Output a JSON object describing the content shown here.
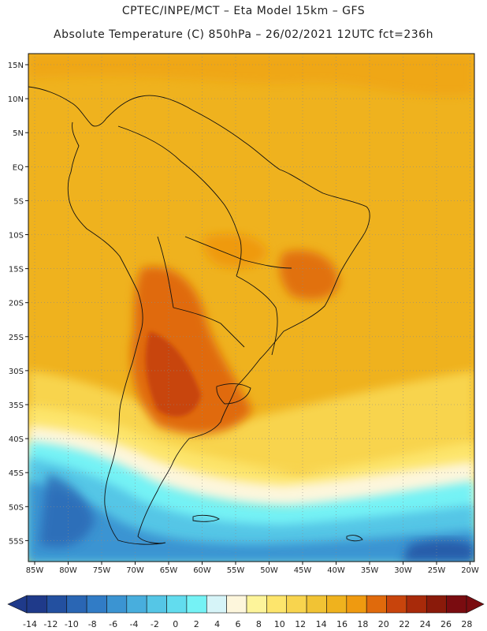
{
  "header": {
    "line1": "CPTEC/INPE/MCT –  Eta Model 15km – GFS",
    "line2": "Absolute Temperature (C) 850hPa – 26/02/2021 12UTC fct=236h"
  },
  "map": {
    "lat_labels": [
      "15N",
      "10N",
      "5N",
      "EQ",
      "5S",
      "10S",
      "15S",
      "20S",
      "25S",
      "30S",
      "35S",
      "40S",
      "45S",
      "50S",
      "55S"
    ],
    "lon_labels": [
      "85W",
      "80W",
      "75W",
      "70W",
      "65W",
      "60W",
      "55W",
      "50W",
      "45W",
      "40W",
      "35W",
      "30W",
      "25W",
      "20W"
    ]
  },
  "colorbar": {
    "labels": [
      "-14",
      "-12",
      "-10",
      "-8",
      "-6",
      "-4",
      "-2",
      "0",
      "2",
      "4",
      "6",
      "8",
      "10",
      "12",
      "14",
      "16",
      "18",
      "20",
      "22",
      "24",
      "26",
      "28"
    ],
    "colors": [
      "#1f3a8a",
      "#2350a0",
      "#2a66b4",
      "#317cc6",
      "#3b94d2",
      "#48aedd",
      "#55c6e6",
      "#62dcee",
      "#75f2f5",
      "#d6f4f8",
      "#fdf6dc",
      "#fdf49a",
      "#fde56c",
      "#f8d44e",
      "#f1c334",
      "#efb21e",
      "#ef9a10",
      "#e06a0c",
      "#c8440c",
      "#a82a0a",
      "#8a1a0a",
      "#7a0c10"
    ]
  }
}
